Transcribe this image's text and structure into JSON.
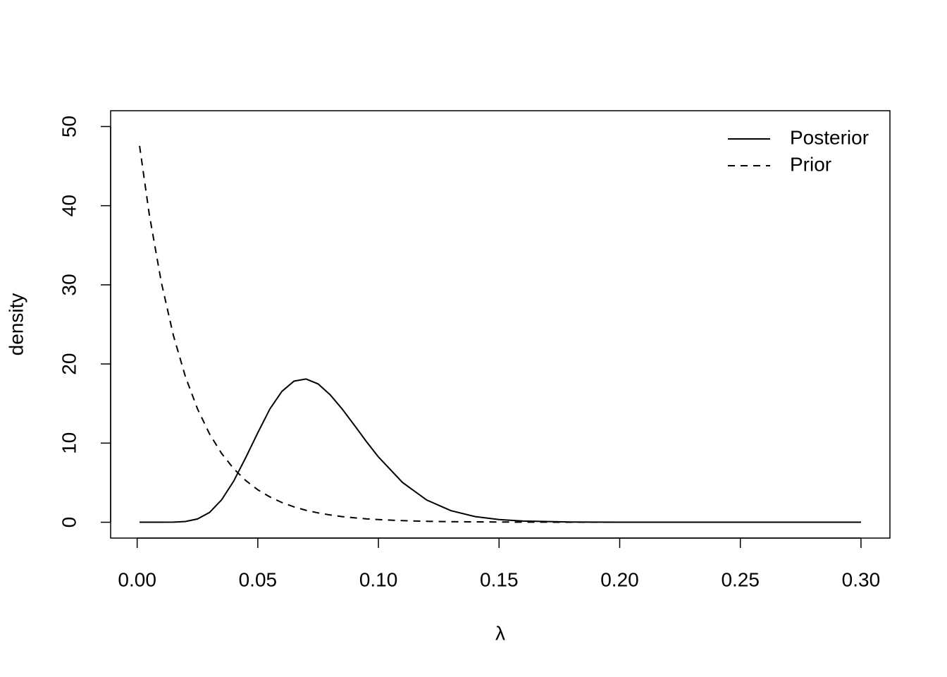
{
  "chart_data": {
    "type": "line",
    "xlabel": "λ",
    "ylabel": "density",
    "x": [
      0.001,
      0.005,
      0.01,
      0.015,
      0.02,
      0.025,
      0.03,
      0.035,
      0.04,
      0.045,
      0.05,
      0.055,
      0.06,
      0.065,
      0.07,
      0.075,
      0.08,
      0.085,
      0.09,
      0.095,
      0.1,
      0.11,
      0.12,
      0.13,
      0.14,
      0.15,
      0.16,
      0.18,
      0.2,
      0.3
    ],
    "series": [
      {
        "name": "Posterior",
        "color": "#000000",
        "linestyle": "solid",
        "values": [
          0,
          0,
          0.0004,
          0.011,
          0.092,
          0.415,
          1.24,
          2.83,
          5.19,
          8.17,
          11.31,
          14.31,
          16.54,
          17.83,
          18.1,
          17.48,
          16.1,
          14.3,
          12.27,
          10.2,
          8.25,
          5.02,
          2.81,
          1.47,
          0.72,
          0.34,
          0.15,
          0.027,
          0.004,
          0
        ]
      },
      {
        "name": "Prior",
        "color": "#000000",
        "linestyle": "dashed",
        "values": [
          47.56,
          38.94,
          30.33,
          23.62,
          18.39,
          14.33,
          11.16,
          8.69,
          6.77,
          5.27,
          4.1,
          3.2,
          2.49,
          1.94,
          1.51,
          1.18,
          0.92,
          0.71,
          0.56,
          0.43,
          0.34,
          0.2,
          0.12,
          0.075,
          0.046,
          0.028,
          0.017,
          0.006,
          0.002,
          0
        ]
      }
    ],
    "xlim": [
      -0.011,
      0.312
    ],
    "xticks": [
      {
        "value": 0,
        "label": "0.00"
      },
      0.05,
      {
        "value": 0.1,
        "label": "0.10"
      },
      0.15,
      {
        "value": 0.2,
        "label": "0.20"
      },
      0.25,
      {
        "value": 0.3,
        "label": "0.30"
      }
    ],
    "ylim": [
      -2,
      52
    ],
    "yticks": [
      0,
      10,
      20,
      30,
      40,
      50
    ],
    "grid": false,
    "legend": "top-right"
  }
}
